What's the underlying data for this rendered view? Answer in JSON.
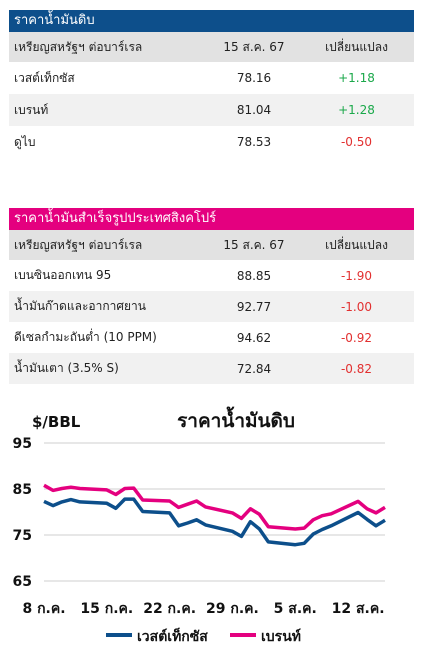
{
  "crude": {
    "title": "ราคาน้ำมันดิบ",
    "headers": [
      "เหรียญสหรัฐฯ ต่อบาร์เรล",
      "15 ส.ค. 67",
      "เปลี่ยนแปลง"
    ],
    "rows": [
      {
        "name": "เวสต์เท็กซัส",
        "price": "78.16",
        "change": "+1.18"
      },
      {
        "name": "เบรนท์",
        "price": "81.04",
        "change": "+1.28"
      },
      {
        "name": "ดูไบ",
        "price": "78.53",
        "change": "-0.50"
      }
    ]
  },
  "refined": {
    "title": "ราคาน้ำมันสำเร็จรูปประเทศสิงคโปร์",
    "headers": [
      "เหรียญสหรัฐฯ ต่อบาร์เรล",
      "15 ส.ค. 67",
      "เปลี่ยนแปลง"
    ],
    "rows": [
      {
        "name": "เบนซินออกเทน 95",
        "price": "88.85",
        "change": "-1.90"
      },
      {
        "name": "น้ำมันก๊าดและอากาศยาน",
        "price": "92.77",
        "change": "-1.00"
      },
      {
        "name": "ดีเซลกำมะถันต่ำ (10 PPM)",
        "price": "94.62",
        "change": "-0.92"
      },
      {
        "name": "น้ำมันเตา (3.5% S)",
        "price": "72.84",
        "change": "-0.82"
      }
    ]
  },
  "colors": {
    "wti": "#0d4f8b",
    "brent": "#e4007f",
    "positive": "#1aa84a",
    "negative": "#e23030"
  },
  "chart_data": {
    "type": "line",
    "title": "ราคาน้ำมันดิบ",
    "ylabel": "$/BBL",
    "ylim": [
      65,
      95
    ],
    "yticks": [
      65,
      75,
      85,
      95
    ],
    "x": [
      "2024-07-08",
      "2024-07-09",
      "2024-07-10",
      "2024-07-11",
      "2024-07-12",
      "2024-07-15",
      "2024-07-16",
      "2024-07-17",
      "2024-07-18",
      "2024-07-19",
      "2024-07-22",
      "2024-07-23",
      "2024-07-24",
      "2024-07-25",
      "2024-07-26",
      "2024-07-29",
      "2024-07-30",
      "2024-07-31",
      "2024-08-01",
      "2024-08-02",
      "2024-08-05",
      "2024-08-06",
      "2024-08-07",
      "2024-08-08",
      "2024-08-09",
      "2024-08-12",
      "2024-08-13",
      "2024-08-14",
      "2024-08-15"
    ],
    "xtick_labels": [
      "8 ก.ค.",
      "15 ก.ค.",
      "22 ก.ค.",
      "29 ก.ค.",
      "5 ส.ค.",
      "12 ส.ค."
    ],
    "series": [
      {
        "name": "เวสต์เท็กซัส",
        "values": [
          82.3,
          81.4,
          82.2,
          82.7,
          82.2,
          81.9,
          80.8,
          82.8,
          82.8,
          80.1,
          79.8,
          77.0,
          77.6,
          78.3,
          77.2,
          75.8,
          74.7,
          77.9,
          76.3,
          73.5,
          72.9,
          73.2,
          75.2,
          76.2,
          77.0,
          79.9,
          78.4,
          77.0,
          78.2
        ]
      },
      {
        "name": "เบรนท์",
        "values": [
          85.8,
          84.7,
          85.1,
          85.4,
          85.1,
          84.8,
          83.8,
          85.1,
          85.2,
          82.6,
          82.4,
          81.0,
          81.7,
          82.4,
          81.1,
          79.8,
          78.6,
          80.7,
          79.5,
          76.8,
          76.3,
          76.5,
          78.3,
          79.2,
          79.6,
          82.3,
          80.7,
          79.8,
          81.0
        ]
      }
    ],
    "legend_position": "bottom",
    "grid": "horizontal"
  }
}
